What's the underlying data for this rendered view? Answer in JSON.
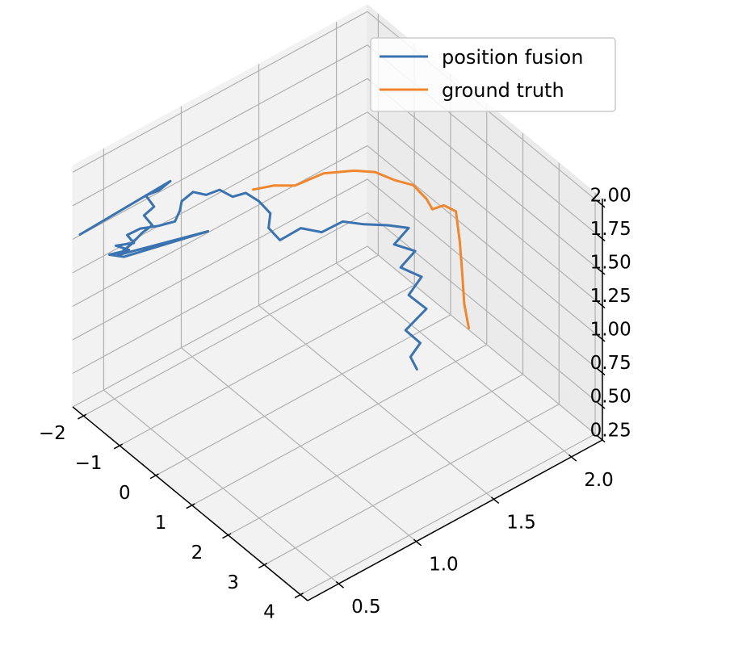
{
  "chart_data": {
    "type": "line",
    "projection": "3d",
    "title": "",
    "xlabel": "",
    "ylabel": "",
    "zlabel": "",
    "grid": true,
    "legend_position": "upper right",
    "xlim": [
      -2.3,
      4.2
    ],
    "ylim": [
      0.3,
      2.2
    ],
    "zlim": [
      0.25,
      2.05
    ],
    "x_ticks": [
      {
        "value": -2,
        "label": "−2"
      },
      {
        "value": -1,
        "label": "−1"
      },
      {
        "value": 0,
        "label": "0"
      },
      {
        "value": 1,
        "label": "1"
      },
      {
        "value": 2,
        "label": "2"
      },
      {
        "value": 3,
        "label": "3"
      },
      {
        "value": 4,
        "label": "4"
      }
    ],
    "y_ticks": [
      {
        "value": 0.5,
        "label": "0.5"
      },
      {
        "value": 1.0,
        "label": "1.0"
      },
      {
        "value": 1.5,
        "label": "1.5"
      },
      {
        "value": 2.0,
        "label": "2.0"
      }
    ],
    "z_ticks": [
      {
        "value": 0.25,
        "label": "0.25"
      },
      {
        "value": 0.5,
        "label": "0.50"
      },
      {
        "value": 0.75,
        "label": "0.75"
      },
      {
        "value": 1.0,
        "label": "1.00"
      },
      {
        "value": 1.25,
        "label": "1.25"
      },
      {
        "value": 1.5,
        "label": "1.50"
      },
      {
        "value": 1.75,
        "label": "1.75"
      },
      {
        "value": 2.0,
        "label": "2.00"
      }
    ],
    "series": [
      {
        "name": "position fusion",
        "color": "#3b73b0",
        "points": [
          [
            1.0,
            1.75,
            0.35
          ],
          [
            0.95,
            1.72,
            0.45
          ],
          [
            1.05,
            1.76,
            0.55
          ],
          [
            0.9,
            1.7,
            0.65
          ],
          [
            1.05,
            1.8,
            0.78
          ],
          [
            0.9,
            1.72,
            0.9
          ],
          [
            1.0,
            1.78,
            1.02
          ],
          [
            0.85,
            1.68,
            1.12
          ],
          [
            0.95,
            1.75,
            1.22
          ],
          [
            0.8,
            1.65,
            1.3
          ],
          [
            0.9,
            1.72,
            1.4
          ],
          [
            0.75,
            1.62,
            1.45
          ],
          [
            0.6,
            1.5,
            1.5
          ],
          [
            0.45,
            1.4,
            1.55
          ],
          [
            0.3,
            1.3,
            1.5
          ],
          [
            0.15,
            1.2,
            1.56
          ],
          [
            0.0,
            1.1,
            1.5
          ],
          [
            -0.1,
            1.05,
            1.6
          ],
          [
            -0.05,
            1.05,
            1.72
          ],
          [
            -0.15,
            1.0,
            1.82
          ],
          [
            -0.3,
            0.95,
            1.88
          ],
          [
            -0.45,
            0.9,
            1.85
          ],
          [
            -0.6,
            0.85,
            1.9
          ],
          [
            -0.75,
            0.8,
            1.86
          ],
          [
            -0.9,
            0.75,
            1.88
          ],
          [
            -1.0,
            0.7,
            1.82
          ],
          [
            -1.05,
            0.7,
            1.74
          ],
          [
            -1.1,
            0.68,
            1.66
          ],
          [
            -1.3,
            0.62,
            1.62
          ],
          [
            -1.5,
            0.55,
            1.6
          ],
          [
            -1.65,
            0.5,
            1.55
          ],
          [
            -1.55,
            0.52,
            1.5
          ],
          [
            -1.75,
            0.45,
            1.48
          ],
          [
            -1.6,
            0.5,
            1.45
          ],
          [
            -1.8,
            0.42,
            1.42
          ],
          [
            -1.65,
            0.48,
            1.4
          ],
          [
            -0.7,
            0.8,
            1.6
          ],
          [
            -1.7,
            0.45,
            1.42
          ],
          [
            -1.55,
            0.5,
            1.5
          ],
          [
            -1.45,
            0.55,
            1.58
          ],
          [
            -1.3,
            0.58,
            1.65
          ],
          [
            -1.4,
            0.55,
            1.72
          ],
          [
            -1.25,
            0.58,
            1.8
          ],
          [
            -1.35,
            0.55,
            1.88
          ],
          [
            -1.2,
            0.6,
            1.92
          ],
          [
            -1.1,
            0.65,
            1.98
          ],
          [
            -2.1,
            0.3,
            1.58
          ]
        ]
      },
      {
        "name": "ground truth",
        "color": "#f0862d",
        "points": [
          [
            1.15,
            2.05,
            0.5
          ],
          [
            1.15,
            2.02,
            0.7
          ],
          [
            1.18,
            2.0,
            0.95
          ],
          [
            1.2,
            1.98,
            1.2
          ],
          [
            1.22,
            1.95,
            1.45
          ],
          [
            1.1,
            1.9,
            1.5
          ],
          [
            1.0,
            1.85,
            1.48
          ],
          [
            1.05,
            1.8,
            1.6
          ],
          [
            0.9,
            1.75,
            1.7
          ],
          [
            0.8,
            1.65,
            1.78
          ],
          [
            0.7,
            1.55,
            1.88
          ],
          [
            0.55,
            1.45,
            1.92
          ],
          [
            0.35,
            1.3,
            1.95
          ],
          [
            0.2,
            1.15,
            1.92
          ],
          [
            0.05,
            1.05,
            1.95
          ],
          [
            -0.1,
            0.95,
            1.95
          ]
        ]
      }
    ]
  }
}
